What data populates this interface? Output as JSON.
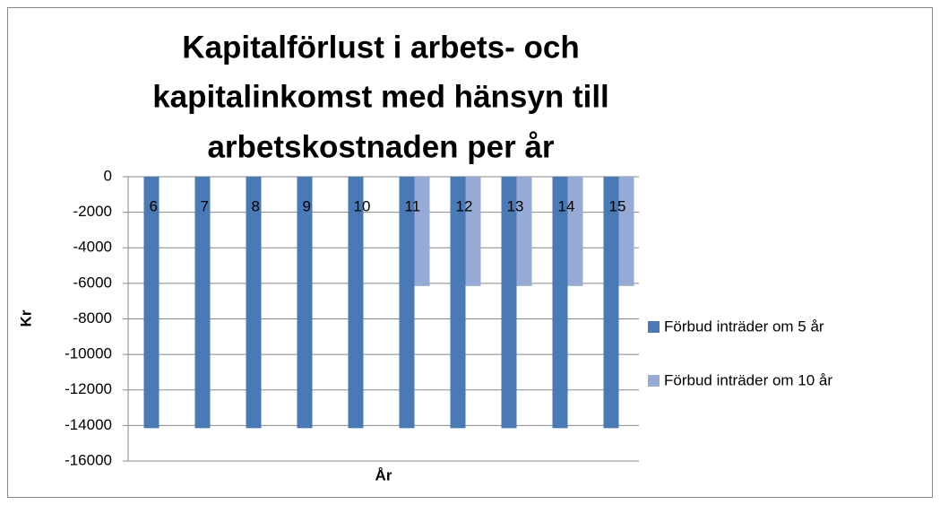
{
  "chart_data": {
    "type": "bar",
    "title": [
      "Kapitalförlust i arbets- och",
      "kapitalinkomst med hänsyn till",
      "arbetskostnaden per år"
    ],
    "x_label": "År",
    "y_label": "Kr",
    "categories": [
      "6",
      "7",
      "8",
      "9",
      "10",
      "11",
      "12",
      "13",
      "14",
      "15"
    ],
    "series": [
      {
        "name": "Förbud inträder om 5 år",
        "color": "#4a7ab5",
        "values": [
          -14150,
          -14150,
          -14150,
          -14150,
          -14150,
          -14150,
          -14150,
          -14150,
          -14150,
          -14150
        ]
      },
      {
        "name": "Förbud inträder om 10 år",
        "color": "#95abd5",
        "values": [
          0,
          0,
          0,
          0,
          0,
          -6150,
          -6150,
          -6150,
          -6150,
          -6150
        ]
      }
    ],
    "ylim": [
      -16000,
      0
    ],
    "yticks": [
      0,
      -2000,
      -4000,
      -6000,
      -8000,
      -10000,
      -12000,
      -14000,
      -16000
    ],
    "grid": true,
    "legend": "right"
  }
}
